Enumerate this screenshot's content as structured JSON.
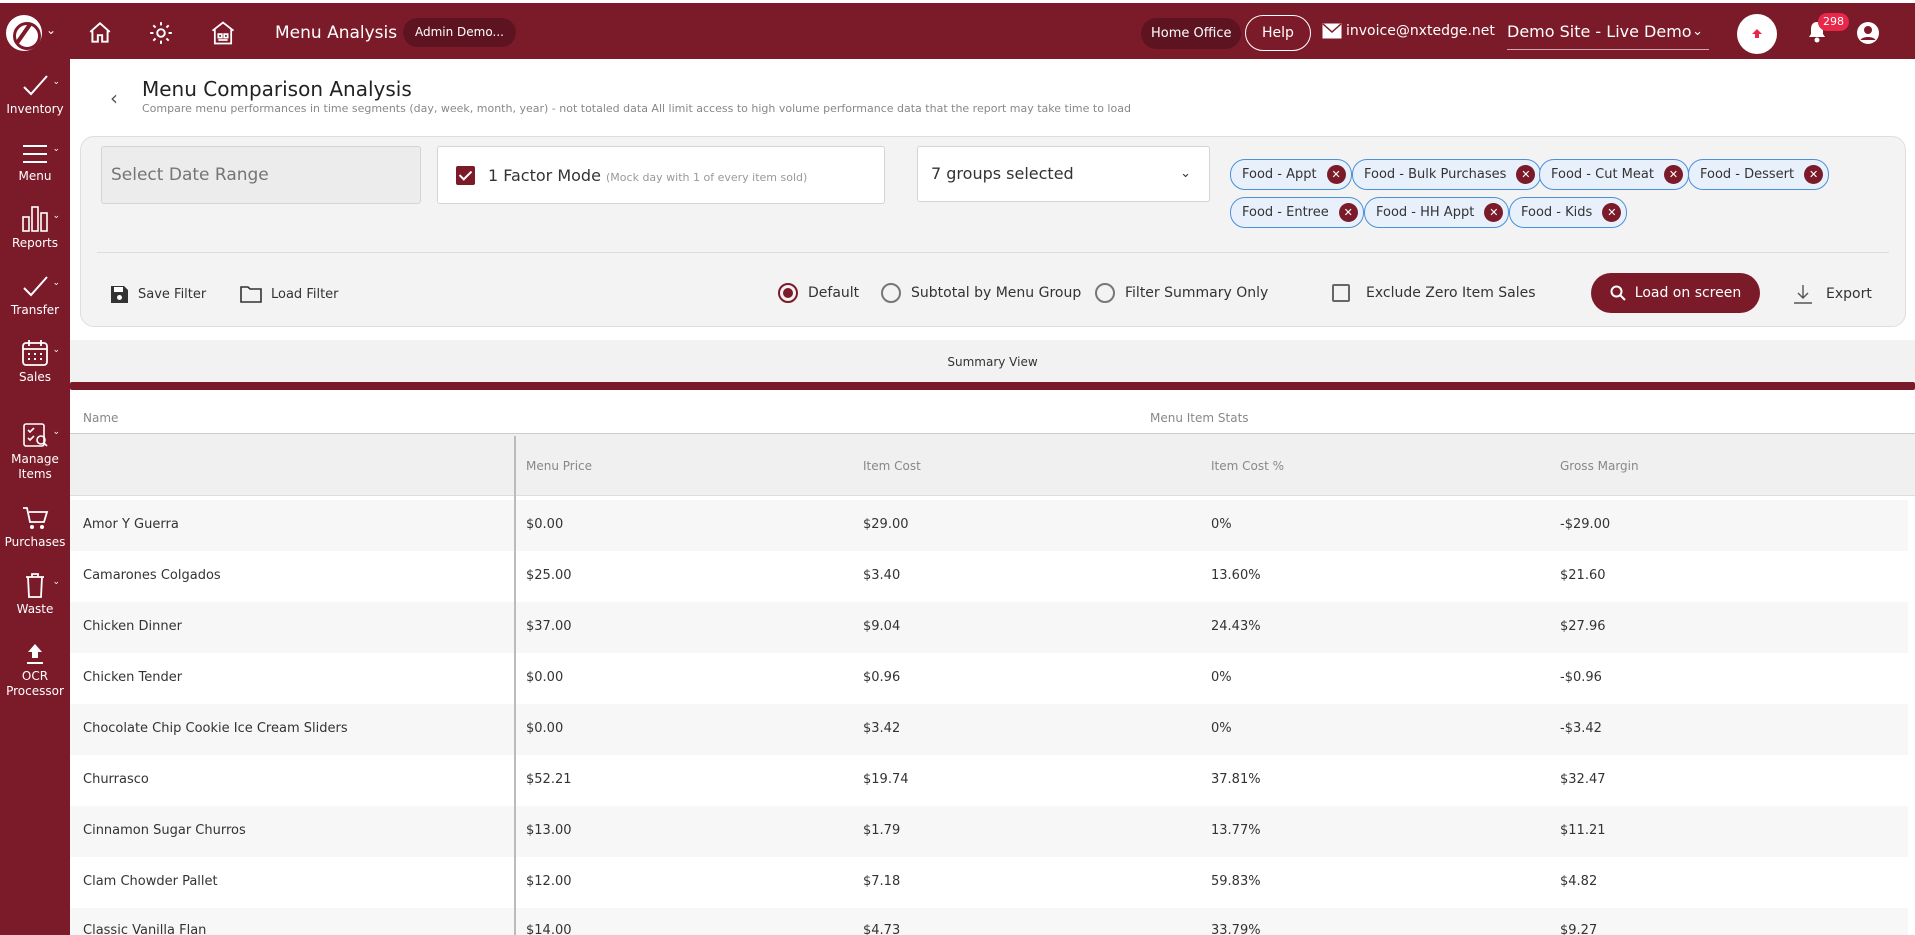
{
  "topbar": {
    "title": "Menu Analysis",
    "admin_pill": "Admin Demo...",
    "home_office": "Home Office",
    "help": "Help",
    "email": "invoice@nxtedge.net",
    "site": "Demo Site - Live Demo",
    "notification_count": "298"
  },
  "sidebar": [
    {
      "label": "Inventory",
      "icon": "check-icon"
    },
    {
      "label": "Menu",
      "icon": "menu-icon"
    },
    {
      "label": "Reports",
      "icon": "bar-chart-icon"
    },
    {
      "label": "Transfer",
      "icon": "check-icon"
    },
    {
      "label": "Sales",
      "icon": "calendar-icon"
    },
    {
      "label": "Manage Items",
      "icon": "manage-items-icon"
    },
    {
      "label": "Purchases",
      "icon": "cart-icon"
    },
    {
      "label": "Waste",
      "icon": "trash-icon"
    },
    {
      "label": "OCR Processor",
      "icon": "upload-icon"
    }
  ],
  "page": {
    "title": "Menu Comparison Analysis",
    "subtitle": "Compare menu performances in time segments (day, week, month, year) - not totaled data All limit access to high volume performance data that the report may take time to load"
  },
  "filters": {
    "date_placeholder": "Select Date Range",
    "factor_label": "1 Factor Mode",
    "factor_note": "(Mock day with 1 of every item sold)",
    "groups_selected": "7 groups selected",
    "chips": [
      "Food - Appt",
      "Food - Bulk Purchases",
      "Food - Cut Meat",
      "Food - Dessert",
      "Food - Entree",
      "Food - HH Appt",
      "Food - Kids"
    ],
    "save_filter": "Save Filter",
    "load_filter": "Load Filter",
    "radio_default": "Default",
    "radio_subtotal": "Subtotal by Menu Group",
    "radio_summary": "Filter Summary Only",
    "exclude_zero": "Exclude Zero Item Sales",
    "load_button": "Load on screen",
    "export": "Export"
  },
  "table": {
    "view_label": "Summary View",
    "name_header": "Name",
    "group_header": "Menu Item Stats",
    "columns": [
      "Menu Price",
      "Item Cost",
      "Item Cost %",
      "Gross Margin"
    ],
    "rows": [
      {
        "name": "Amor Y Guerra",
        "price": "$0.00",
        "cost": "$29.00",
        "pct": "0%",
        "margin": "-$29.00"
      },
      {
        "name": "Camarones Colgados",
        "price": "$25.00",
        "cost": "$3.40",
        "pct": "13.60%",
        "margin": "$21.60"
      },
      {
        "name": "Chicken Dinner",
        "price": "$37.00",
        "cost": "$9.04",
        "pct": "24.43%",
        "margin": "$27.96"
      },
      {
        "name": "Chicken Tender",
        "price": "$0.00",
        "cost": "$0.96",
        "pct": "0%",
        "margin": "-$0.96"
      },
      {
        "name": "Chocolate Chip Cookie Ice Cream Sliders",
        "price": "$0.00",
        "cost": "$3.42",
        "pct": "0%",
        "margin": "-$3.42"
      },
      {
        "name": "Churrasco",
        "price": "$52.21",
        "cost": "$19.74",
        "pct": "37.81%",
        "margin": "$32.47"
      },
      {
        "name": "Cinnamon Sugar Churros",
        "price": "$13.00",
        "cost": "$1.79",
        "pct": "13.77%",
        "margin": "$11.21"
      },
      {
        "name": "Clam Chowder Pallet",
        "price": "$12.00",
        "cost": "$7.18",
        "pct": "59.83%",
        "margin": "$4.82"
      },
      {
        "name": "Classic Vanilla Flan",
        "price": "$14.00",
        "cost": "$4.73",
        "pct": "33.79%",
        "margin": "$9.27"
      }
    ]
  },
  "colors": {
    "brand": "#7b1b2a",
    "chip_border": "#4a90d9",
    "badge": "#e8274b"
  }
}
